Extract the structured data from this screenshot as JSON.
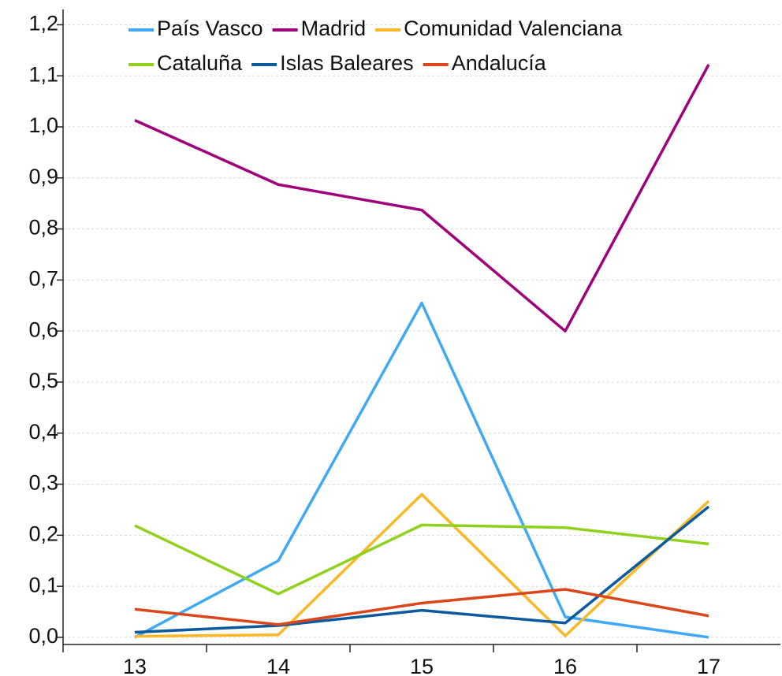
{
  "chart_data": {
    "type": "line",
    "categories": [
      "13",
      "14",
      "15",
      "16",
      "17"
    ],
    "series": [
      {
        "name": "País Vasco",
        "color": "#3fa9f5",
        "values": [
          0.0,
          0.15,
          0.655,
          0.04,
          0.0
        ]
      },
      {
        "name": "Madrid",
        "color": "#a0007a",
        "values": [
          1.013,
          0.887,
          0.837,
          0.6,
          1.122
        ]
      },
      {
        "name": "Comunidad Valenciana",
        "color": "#fbb726",
        "values": [
          0.002,
          0.005,
          0.28,
          0.003,
          0.267
        ]
      },
      {
        "name": "Cataluña",
        "color": "#8fd11d",
        "values": [
          0.219,
          0.085,
          0.22,
          0.215,
          0.183
        ]
      },
      {
        "name": "Islas Baleares",
        "color": "#0b5a9e",
        "values": [
          0.01,
          0.023,
          0.053,
          0.028,
          0.256
        ]
      },
      {
        "name": "Andalucía",
        "color": "#d9471b",
        "values": [
          0.055,
          0.025,
          0.067,
          0.094,
          0.042
        ]
      }
    ],
    "ylim": [
      -0.014,
      1.23
    ],
    "yticks": [
      {
        "value": 0,
        "label": "0,0"
      },
      {
        "value": 0.1,
        "label": "0,1"
      },
      {
        "value": 0.2,
        "label": "0,2"
      },
      {
        "value": 0.3,
        "label": "0,3"
      },
      {
        "value": 0.4,
        "label": "0,4"
      },
      {
        "value": 0.5,
        "label": "0,5"
      },
      {
        "value": 0.6,
        "label": "0,6"
      },
      {
        "value": 0.7,
        "label": "0,7"
      },
      {
        "value": 0.8,
        "label": "0,8"
      },
      {
        "value": 0.9,
        "label": "0,9"
      },
      {
        "value": 1.0,
        "label": "1,0"
      },
      {
        "value": 1.1,
        "label": "1,1"
      },
      {
        "value": 1.2,
        "label": "1,2"
      }
    ],
    "grid": true,
    "legend": "top"
  }
}
